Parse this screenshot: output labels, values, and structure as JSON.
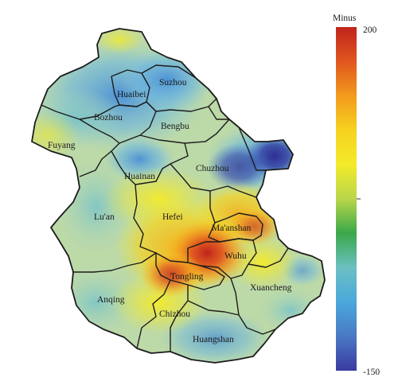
{
  "legend": {
    "title": "Minus",
    "max_label": "200",
    "min_label": "-150",
    "max_value": 200,
    "min_value": -150,
    "colors": [
      "#c0241c",
      "#e0561f",
      "#f39a1d",
      "#f6d21f",
      "#f4ea2a",
      "#b8d64a",
      "#3aa84a",
      "#6cc0c2",
      "#4aa8dc",
      "#4a78c4",
      "#3a3aa0"
    ]
  },
  "cities": [
    {
      "name": "Suzhou"
    },
    {
      "name": "Huaibei"
    },
    {
      "name": "Bozhou"
    },
    {
      "name": "Bengbu"
    },
    {
      "name": "Fuyang"
    },
    {
      "name": "Huainan"
    },
    {
      "name": "Chuzhou"
    },
    {
      "name": "Lu'an"
    },
    {
      "name": "Hefei"
    },
    {
      "name": "Ma'anshan"
    },
    {
      "name": "Wuhu"
    },
    {
      "name": "Tongling"
    },
    {
      "name": "Xuancheng"
    },
    {
      "name": "Anqing"
    },
    {
      "name": "Chizhou"
    },
    {
      "name": "Huangshan"
    }
  ]
}
